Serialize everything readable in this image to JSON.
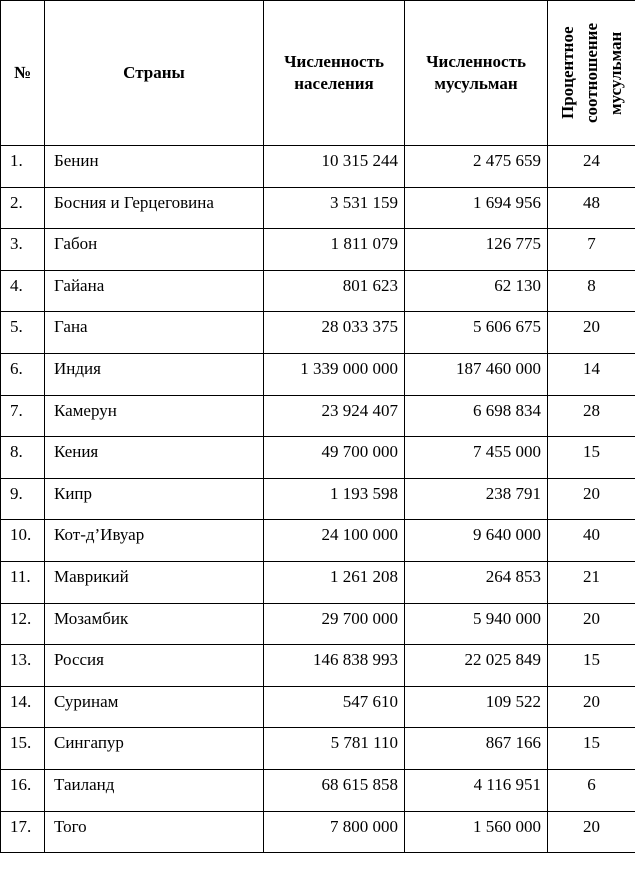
{
  "table": {
    "header": [
      "№",
      "Страны",
      "Численность населения",
      "Численность мусульман",
      "Процентное соотношение мусульман"
    ],
    "rows": [
      [
        "1.",
        "Бенин",
        "10 315 244",
        "2 475 659",
        24
      ],
      [
        "2.",
        "Босния и Герцеговина",
        "3 531 159",
        "1 694 956",
        48
      ],
      [
        "3.",
        "Габон",
        "1 811 079",
        "126 775",
        7
      ],
      [
        "4.",
        "Гайана",
        "801 623",
        "62 130",
        8
      ],
      [
        "5.",
        "Гана",
        "28 033 375",
        "5 606 675",
        20
      ],
      [
        "6.",
        "Индия",
        "1 339 000 000",
        "187 460 000",
        14
      ],
      [
        "7.",
        "Камерун",
        "23 924 407",
        "6 698 834",
        28
      ],
      [
        "8.",
        "Кения",
        "49 700 000",
        "7 455 000",
        15
      ],
      [
        "9.",
        "Кипр",
        "1 193 598",
        "238 791",
        20
      ],
      [
        "10.",
        "Кот-д’Ивуар",
        "24 100 000",
        "9 640 000",
        40
      ],
      [
        "11.",
        "Маврикий",
        "1 261 208",
        "264 853",
        21
      ],
      [
        "12.",
        "Мозамбик",
        "29 700 000",
        "5 940 000",
        20
      ],
      [
        "13.",
        "Россия",
        "146 838 993",
        "22 025 849",
        15
      ],
      [
        "14.",
        "Суринам",
        "547 610",
        "109 522",
        20
      ],
      [
        "15.",
        "Сингапур",
        "5 781 110",
        "867 166",
        15
      ],
      [
        "16.",
        "Таиланд",
        "68 615 858",
        "4 116 951",
        6
      ],
      [
        "17.",
        "Того",
        "7 800 000",
        "1 560 000",
        20
      ]
    ]
  }
}
